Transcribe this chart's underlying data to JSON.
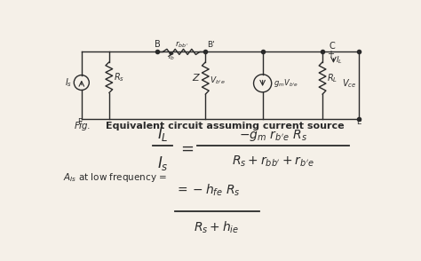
{
  "bg_color": "#f5f0e8",
  "circuit_fig_label": "Fig.",
  "circuit_caption": "Equivalent circuit assuming current source",
  "eq_frac1_num": "$I_L$",
  "eq_frac1_den": "$I_s$",
  "eq_frac2_num": "$-g_m\\ r_{b'e}\\ R_s$",
  "eq_frac2_den": "$R_s + r_{bb'} + r_{b'e}$",
  "low_freq_label": "$A_{Is}$ at low frequency =",
  "low_freq_line1": "$= -h_{fe}\\ R_s$",
  "low_freq_den": "$R_s + h_{ie}$"
}
